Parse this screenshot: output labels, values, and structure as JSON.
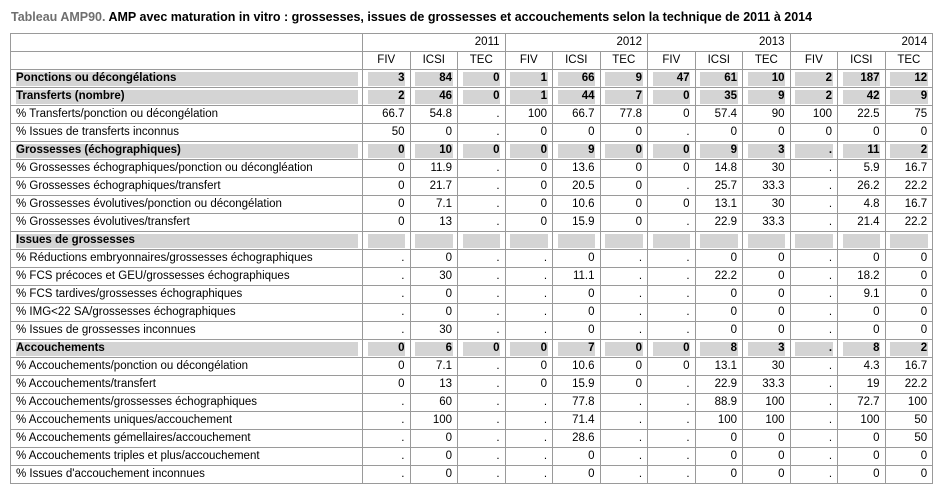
{
  "title": {
    "prefix": "Tableau AMP90.",
    "main": " AMP avec maturation in vitro : grossesses, issues de grossesses et accouchements selon la technique de 2011 à 2014"
  },
  "colors": {
    "section_row_bg": "#d4d4d4",
    "border": "#9a9a9a",
    "title_prefix": "#6f6f6f"
  },
  "table": {
    "years": [
      "2011",
      "2012",
      "2013",
      "2014"
    ],
    "techniques": [
      "FIV",
      "ICSI",
      "TEC"
    ],
    "rows": [
      {
        "label": "Ponctions ou décongélations",
        "section": true,
        "values": [
          "3",
          "84",
          "0",
          "1",
          "66",
          "9",
          "47",
          "61",
          "10",
          "2",
          "187",
          "12"
        ]
      },
      {
        "label": "Transferts (nombre)",
        "section": true,
        "values": [
          "2",
          "46",
          "0",
          "1",
          "44",
          "7",
          "0",
          "35",
          "9",
          "2",
          "42",
          "9"
        ]
      },
      {
        "label": "% Transferts/ponction ou décongélation",
        "section": false,
        "values": [
          "66.7",
          "54.8",
          ".",
          "100",
          "66.7",
          "77.8",
          "0",
          "57.4",
          "90",
          "100",
          "22.5",
          "75"
        ]
      },
      {
        "label": "% Issues de transferts inconnus",
        "section": false,
        "values": [
          "50",
          "0",
          ".",
          "0",
          "0",
          "0",
          ".",
          "0",
          "0",
          "0",
          "0",
          "0"
        ]
      },
      {
        "label": "Grossesses (échographiques)",
        "section": true,
        "values": [
          "0",
          "10",
          "0",
          "0",
          "9",
          "0",
          "0",
          "9",
          "3",
          ".",
          "11",
          "2"
        ]
      },
      {
        "label": "% Grossesses échographiques/ponction ou décongléation",
        "section": false,
        "values": [
          "0",
          "11.9",
          ".",
          "0",
          "13.6",
          "0",
          "0",
          "14.8",
          "30",
          ".",
          "5.9",
          "16.7"
        ]
      },
      {
        "label": "% Grossesses échographiques/transfert",
        "section": false,
        "values": [
          "0",
          "21.7",
          ".",
          "0",
          "20.5",
          "0",
          ".",
          "25.7",
          "33.3",
          ".",
          "26.2",
          "22.2"
        ]
      },
      {
        "label": "% Grossesses évolutives/ponction ou décongélation",
        "section": false,
        "values": [
          "0",
          "7.1",
          ".",
          "0",
          "10.6",
          "0",
          "0",
          "13.1",
          "30",
          ".",
          "4.8",
          "16.7"
        ]
      },
      {
        "label": "% Grossesses évolutives/transfert",
        "section": false,
        "values": [
          "0",
          "13",
          ".",
          "0",
          "15.9",
          "0",
          ".",
          "22.9",
          "33.3",
          ".",
          "21.4",
          "22.2"
        ]
      },
      {
        "label": "Issues de grossesses",
        "section": true,
        "values": [
          "",
          "",
          "",
          "",
          "",
          "",
          "",
          "",
          "",
          "",
          "",
          ""
        ]
      },
      {
        "label": "% Réductions embryonnaires/grossesses échographiques",
        "section": false,
        "values": [
          ".",
          "0",
          ".",
          ".",
          "0",
          ".",
          ".",
          "0",
          "0",
          ".",
          "0",
          "0"
        ]
      },
      {
        "label": "% FCS précoces et GEU/grossesses échographiques",
        "section": false,
        "values": [
          ".",
          "30",
          ".",
          ".",
          "11.1",
          ".",
          ".",
          "22.2",
          "0",
          ".",
          "18.2",
          "0"
        ]
      },
      {
        "label": "% FCS tardives/grossesses échographiques",
        "section": false,
        "values": [
          ".",
          "0",
          ".",
          ".",
          "0",
          ".",
          ".",
          "0",
          "0",
          ".",
          "9.1",
          "0"
        ]
      },
      {
        "label": "% IMG<22 SA/grossesses échographiques",
        "section": false,
        "values": [
          ".",
          "0",
          ".",
          ".",
          "0",
          ".",
          ".",
          "0",
          "0",
          ".",
          "0",
          "0"
        ]
      },
      {
        "label": "% Issues de grossesses inconnues",
        "section": false,
        "values": [
          ".",
          "30",
          ".",
          ".",
          "0",
          ".",
          ".",
          "0",
          "0",
          ".",
          "0",
          "0"
        ]
      },
      {
        "label": "Accouchements",
        "section": true,
        "values": [
          "0",
          "6",
          "0",
          "0",
          "7",
          "0",
          "0",
          "8",
          "3",
          ".",
          "8",
          "2"
        ]
      },
      {
        "label": "% Accouchements/ponction ou décongélation",
        "section": false,
        "values": [
          "0",
          "7.1",
          ".",
          "0",
          "10.6",
          "0",
          "0",
          "13.1",
          "30",
          ".",
          "4.3",
          "16.7"
        ]
      },
      {
        "label": "% Accouchements/transfert",
        "section": false,
        "values": [
          "0",
          "13",
          ".",
          "0",
          "15.9",
          "0",
          ".",
          "22.9",
          "33.3",
          ".",
          "19",
          "22.2"
        ]
      },
      {
        "label": "% Accouchements/grossesses échographiques",
        "section": false,
        "values": [
          ".",
          "60",
          ".",
          ".",
          "77.8",
          ".",
          ".",
          "88.9",
          "100",
          ".",
          "72.7",
          "100"
        ]
      },
      {
        "label": "% Accouchements uniques/accouchement",
        "section": false,
        "values": [
          ".",
          "100",
          ".",
          ".",
          "71.4",
          ".",
          ".",
          "100",
          "100",
          ".",
          "100",
          "50"
        ]
      },
      {
        "label": "% Accouchements gémellaires/accouchement",
        "section": false,
        "values": [
          ".",
          "0",
          ".",
          ".",
          "28.6",
          ".",
          ".",
          "0",
          "0",
          ".",
          "0",
          "50"
        ]
      },
      {
        "label": "% Accouchements triples et plus/accouchement",
        "section": false,
        "values": [
          ".",
          "0",
          ".",
          ".",
          "0",
          ".",
          ".",
          "0",
          "0",
          ".",
          "0",
          "0"
        ]
      },
      {
        "label": "% Issues d'accouchement inconnues",
        "section": false,
        "values": [
          ".",
          "0",
          ".",
          ".",
          "0",
          ".",
          ".",
          "0",
          "0",
          ".",
          "0",
          "0"
        ]
      }
    ]
  }
}
